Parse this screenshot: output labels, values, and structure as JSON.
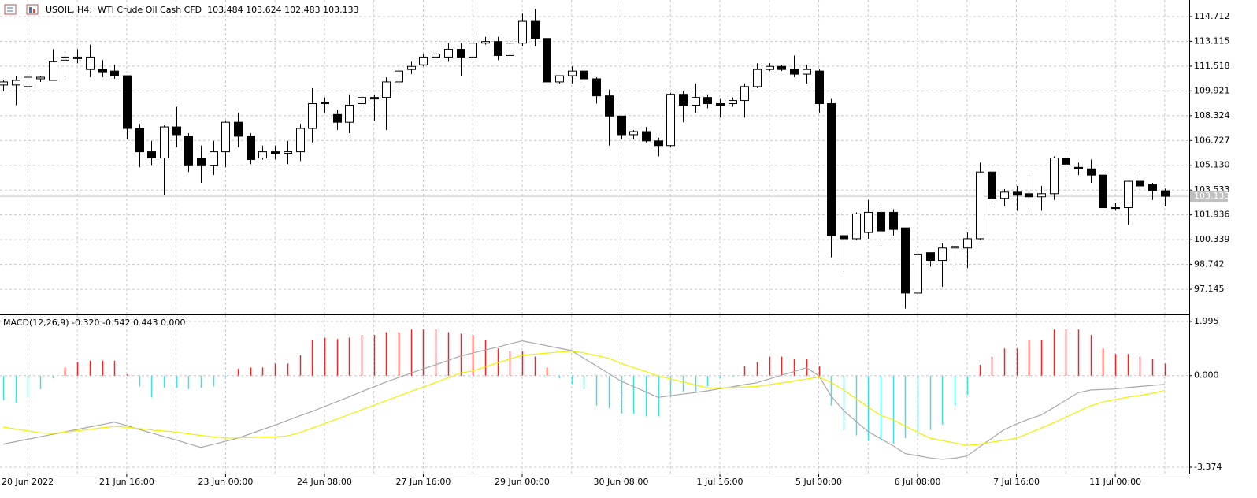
{
  "chart_data": [
    {
      "type": "candlestick",
      "title": "USOIL, H4:  WTI Crude Oil Cash CFD  103.484 103.624 102.483 103.133",
      "categories": [
        null,
        null,
        "20 Jun 2022",
        null,
        null,
        null,
        null,
        null,
        null,
        null,
        "21 Jun 16:00",
        null,
        null,
        null,
        null,
        null,
        null,
        null,
        "23 Jun 00:00",
        null,
        null,
        null,
        null,
        null,
        null,
        null,
        "24 Jun 08:00",
        null,
        null,
        null,
        null,
        null,
        null,
        null,
        "27 Jun 16:00",
        null,
        null,
        null,
        null,
        null,
        null,
        null,
        "29 Jun 00:00",
        null,
        null,
        null,
        null,
        null,
        null,
        null,
        "30 Jun 08:00",
        null,
        null,
        null,
        null,
        null,
        null,
        null,
        "1 Jul 16:00",
        null,
        null,
        null,
        null,
        null,
        null,
        null,
        "5 Jul 00:00",
        null,
        null,
        null,
        null,
        null,
        null,
        null,
        "6 Jul 08:00",
        null,
        null,
        null,
        null,
        null,
        null,
        null,
        "7 Jul 16:00",
        null,
        null,
        null,
        null,
        null,
        null,
        null,
        "11 Jul 00:00",
        null,
        null,
        null,
        null
      ],
      "open": [
        110.3,
        110.3,
        110.2,
        110.7,
        110.6,
        111.9,
        112.0,
        111.3,
        111.3,
        111.2,
        110.9,
        107.5,
        106.0,
        105.6,
        107.6,
        107.0,
        105.6,
        105.1,
        106.0,
        107.9,
        107.0,
        105.6,
        106.0,
        105.9,
        106.0,
        107.5,
        109.2,
        108.4,
        107.9,
        109.1,
        109.5,
        109.5,
        110.5,
        111.3,
        111.6,
        112.1,
        112.1,
        112.6,
        112.1,
        113.0,
        113.1,
        112.2,
        113.0,
        114.4,
        113.3,
        110.5,
        110.9,
        111.2,
        110.7,
        109.6,
        108.3,
        107.1,
        107.3,
        106.7,
        106.4,
        109.7,
        109.0,
        109.5,
        109.1,
        109.1,
        109.3,
        110.2,
        111.3,
        111.5,
        111.3,
        111.0,
        111.2,
        109.1,
        100.6,
        100.4,
        100.8,
        102.1,
        102.1,
        101.1,
        96.9,
        99.5,
        99.0,
        99.8,
        99.8,
        100.4,
        104.7,
        103.0,
        103.4,
        103.3,
        103.1,
        103.3,
        105.6,
        105.0,
        104.9,
        104.5,
        102.4,
        102.4,
        104.1,
        103.9,
        103.484
      ],
      "high": [
        110.6,
        110.9,
        111.0,
        110.9,
        112.6,
        112.5,
        112.6,
        112.9,
        111.9,
        111.6,
        110.9,
        107.8,
        106.7,
        107.7,
        108.9,
        107.2,
        106.4,
        106.7,
        108.0,
        108.5,
        107.2,
        106.4,
        106.4,
        106.7,
        107.8,
        110.1,
        109.5,
        108.7,
        109.7,
        109.6,
        109.7,
        110.8,
        111.7,
        111.8,
        112.3,
        113.0,
        113.0,
        113.0,
        113.6,
        113.4,
        113.4,
        113.2,
        114.9,
        115.2,
        113.3,
        110.9,
        111.5,
        111.6,
        110.8,
        110.0,
        108.3,
        107.4,
        107.6,
        106.9,
        109.8,
        109.9,
        110.4,
        109.7,
        109.4,
        109.5,
        110.4,
        111.7,
        111.7,
        111.6,
        112.2,
        111.6,
        111.3,
        109.4,
        102.0,
        102.1,
        102.9,
        102.4,
        102.3,
        101.1,
        99.6,
        99.5,
        100.1,
        100.3,
        100.8,
        105.3,
        105.2,
        103.6,
        103.8,
        104.5,
        103.8,
        105.7,
        105.9,
        105.3,
        105.5,
        104.6,
        102.7,
        104.1,
        104.6,
        104.0,
        103.624
      ],
      "low": [
        109.9,
        109.0,
        110.0,
        110.5,
        110.6,
        110.8,
        111.7,
        110.8,
        110.8,
        110.7,
        106.8,
        105.0,
        105.1,
        103.2,
        106.3,
        104.7,
        104.0,
        104.5,
        105.0,
        106.3,
        105.2,
        105.5,
        105.5,
        105.2,
        105.4,
        106.6,
        108.5,
        107.4,
        107.2,
        108.6,
        108.0,
        107.4,
        110.0,
        111.0,
        111.5,
        111.9,
        111.8,
        110.9,
        111.9,
        112.9,
        111.9,
        112.0,
        112.8,
        112.8,
        110.5,
        110.4,
        110.4,
        110.2,
        109.1,
        106.4,
        106.8,
        106.8,
        106.6,
        105.7,
        106.3,
        107.9,
        108.5,
        108.8,
        108.2,
        108.9,
        108.2,
        110.1,
        111.2,
        111.2,
        110.8,
        110.4,
        108.5,
        99.2,
        98.3,
        100.3,
        100.4,
        100.2,
        100.6,
        95.9,
        96.3,
        98.6,
        97.3,
        98.7,
        98.5,
        100.3,
        102.4,
        102.5,
        102.2,
        102.3,
        102.2,
        102.9,
        104.7,
        104.5,
        104.0,
        102.2,
        102.2,
        101.3,
        103.3,
        102.9,
        102.483
      ],
      "close": [
        110.5,
        110.6,
        110.8,
        110.8,
        111.8,
        112.1,
        112.1,
        112.1,
        111.1,
        110.9,
        107.5,
        106.0,
        105.6,
        107.6,
        107.1,
        105.1,
        105.1,
        106.0,
        107.9,
        107.0,
        105.5,
        106.0,
        105.9,
        106.0,
        107.5,
        109.1,
        109.1,
        107.9,
        109.0,
        109.5,
        109.4,
        110.5,
        111.2,
        111.5,
        112.1,
        112.3,
        112.6,
        112.1,
        113.0,
        113.1,
        112.2,
        113.0,
        114.4,
        113.3,
        110.5,
        110.9,
        111.2,
        110.7,
        109.6,
        108.3,
        107.1,
        107.3,
        106.7,
        106.4,
        109.7,
        109.0,
        109.5,
        109.1,
        109.0,
        109.3,
        110.2,
        111.3,
        111.5,
        111.3,
        111.0,
        111.3,
        109.1,
        100.6,
        100.4,
        102.0,
        102.1,
        100.9,
        101.0,
        96.9,
        99.4,
        99.0,
        99.8,
        99.9,
        100.4,
        104.7,
        103.0,
        103.4,
        103.2,
        103.1,
        103.3,
        105.6,
        105.2,
        104.9,
        104.5,
        102.4,
        102.4,
        104.1,
        103.8,
        103.5,
        103.133
      ],
      "up_color": "#ffffff",
      "down_color": "#000000",
      "price_line_color": "#c0c0c0",
      "ylim": [
        95.576,
        115.775
      ],
      "yticks": [
        97.145,
        98.742,
        100.339,
        101.936,
        103.533,
        {
          "value": 105.13,
          "label": "105.130"
        },
        106.727,
        108.324,
        109.921,
        111.518,
        113.115,
        114.712
      ],
      "grid": true
    },
    {
      "type": "macd",
      "title": "MACD(12,26,9) -0.320 -0.542 0.443 0.000",
      "histogram": [
        -0.9,
        -1.0,
        -0.8,
        -0.5,
        -0.1,
        0.3,
        0.5,
        0.55,
        0.55,
        0.55,
        0.05,
        -0.4,
        -0.8,
        -0.45,
        -0.45,
        -0.5,
        -0.45,
        -0.4,
        -0.05,
        0.25,
        0.3,
        0.3,
        0.45,
        0.45,
        0.75,
        1.3,
        1.4,
        1.35,
        1.4,
        1.5,
        1.5,
        1.6,
        1.6,
        1.7,
        1.7,
        1.7,
        1.6,
        1.55,
        1.5,
        1.3,
        1.0,
        0.9,
        0.9,
        0.7,
        0.3,
        -0.1,
        -0.3,
        -0.5,
        -1.1,
        -1.2,
        -1.4,
        -1.4,
        -1.5,
        -1.5,
        -0.8,
        -0.6,
        -0.6,
        -0.4,
        -0.1,
        -0.05,
        0.35,
        0.5,
        0.7,
        0.7,
        0.6,
        0.6,
        0.35,
        -1.1,
        -2.0,
        -2.2,
        -2.4,
        -2.4,
        -2.5,
        -2.3,
        -2.2,
        -2.0,
        -1.8,
        -1.1,
        -0.7,
        0.4,
        0.7,
        1.0,
        1.0,
        1.3,
        1.3,
        1.7,
        1.7,
        1.7,
        1.5,
        1.0,
        0.8,
        0.8,
        0.7,
        0.6,
        0.443
      ],
      "positive_color": "#ff2020",
      "negative_color": "#3ee0ec",
      "lines": [
        {
          "color": "#a8a8a8",
          "values": [
            -2.52,
            -2.43,
            -2.34,
            -2.25,
            -2.16,
            -2.07,
            -1.98,
            -1.89,
            -1.8,
            -1.71,
            -1.84,
            -1.98,
            -2.11,
            -2.24,
            -2.37,
            -2.51,
            -2.64,
            -2.53,
            -2.42,
            -2.3,
            -2.14,
            -1.98,
            -1.82,
            -1.65,
            -1.48,
            -1.32,
            -1.14,
            -0.96,
            -0.78,
            -0.59,
            -0.41,
            -0.23,
            -0.07,
            0.09,
            0.25,
            0.4,
            0.56,
            0.72,
            0.83,
            0.94,
            1.05,
            1.17,
            1.28,
            1.19,
            1.1,
            1.01,
            0.92,
            0.64,
            0.36,
            0.08,
            -0.2,
            -0.4,
            -0.6,
            -0.8,
            -0.74,
            -0.68,
            -0.62,
            -0.56,
            -0.48,
            -0.41,
            -0.33,
            -0.26,
            -0.12,
            0.02,
            0.15,
            0.29,
            0.0,
            -0.75,
            -1.28,
            -1.68,
            -2.06,
            -2.32,
            -2.58,
            -2.87,
            -2.95,
            -3.03,
            -3.08,
            -3.04,
            -2.96,
            -2.63,
            -2.31,
            -1.99,
            -1.78,
            -1.6,
            -1.45,
            -1.18,
            -0.9,
            -0.63,
            -0.53,
            -0.51,
            -0.49,
            -0.44,
            -0.4,
            -0.36,
            -0.32
          ]
        },
        {
          "color": "#f0f000",
          "values": [
            -1.89,
            -1.96,
            -2.04,
            -2.11,
            -2.13,
            -2.08,
            -2.03,
            -1.98,
            -1.92,
            -1.87,
            -1.9,
            -1.95,
            -2.0,
            -2.04,
            -2.08,
            -2.14,
            -2.2,
            -2.25,
            -2.3,
            -2.29,
            -2.28,
            -2.26,
            -2.25,
            -2.22,
            -2.1,
            -1.93,
            -1.77,
            -1.6,
            -1.43,
            -1.26,
            -1.09,
            -0.92,
            -0.75,
            -0.58,
            -0.42,
            -0.25,
            -0.08,
            0.1,
            0.17,
            0.32,
            0.47,
            0.61,
            0.75,
            0.79,
            0.83,
            0.87,
            0.9,
            0.84,
            0.74,
            0.64,
            0.46,
            0.3,
            0.15,
            -0.01,
            -0.12,
            -0.23,
            -0.34,
            -0.45,
            -0.45,
            -0.43,
            -0.42,
            -0.4,
            -0.33,
            -0.27,
            -0.2,
            -0.13,
            -0.05,
            -0.25,
            -0.52,
            -0.84,
            -1.16,
            -1.46,
            -1.62,
            -1.86,
            -2.08,
            -2.3,
            -2.39,
            -2.48,
            -2.57,
            -2.53,
            -2.45,
            -2.38,
            -2.3,
            -2.12,
            -1.93,
            -1.74,
            -1.53,
            -1.32,
            -1.11,
            -0.97,
            -0.88,
            -0.79,
            -0.73,
            -0.65,
            -0.542
          ]
        }
      ],
      "ylim": [
        -3.606,
        2.227
      ],
      "yticks": [
        -3.374,
        {
          "value": 0,
          "label": "0.000"
        },
        1.995
      ],
      "grid": true
    }
  ]
}
